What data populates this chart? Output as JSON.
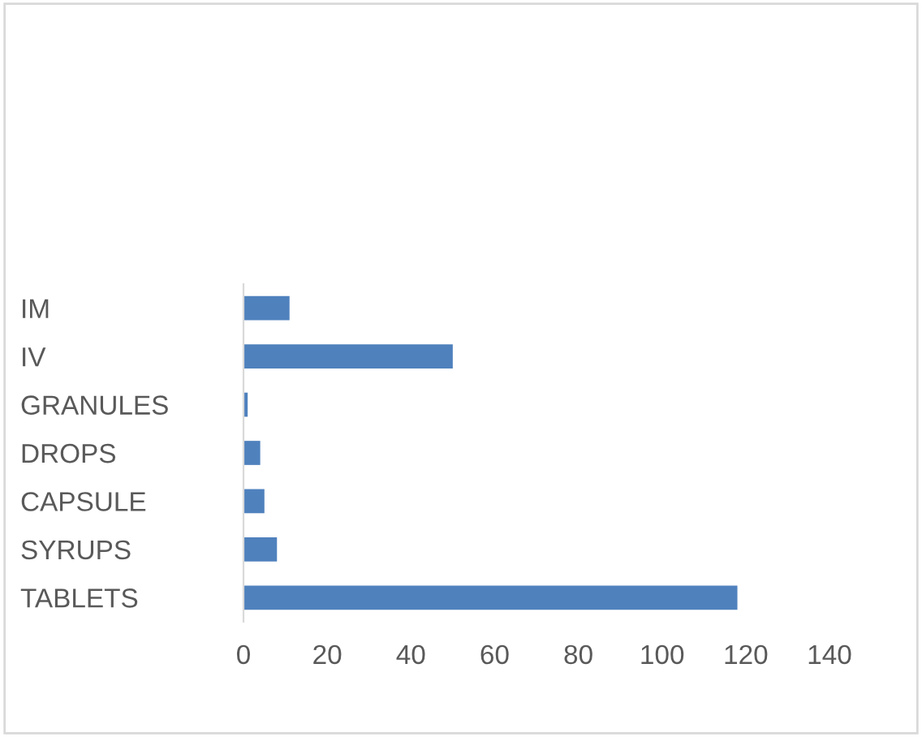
{
  "chart_data": {
    "type": "bar",
    "orientation": "horizontal",
    "categories": [
      "IM",
      "IV",
      "GRANULES",
      "DROPS",
      "CAPSULE",
      "SYRUPS",
      "TABLETS"
    ],
    "values": [
      11,
      50,
      1,
      4,
      5,
      8,
      118
    ],
    "color": "#4f81bd",
    "xlim": [
      0,
      140
    ],
    "xticks": [
      0,
      20,
      40,
      60,
      80,
      100,
      120,
      140
    ],
    "grid": false,
    "legend": false
  }
}
